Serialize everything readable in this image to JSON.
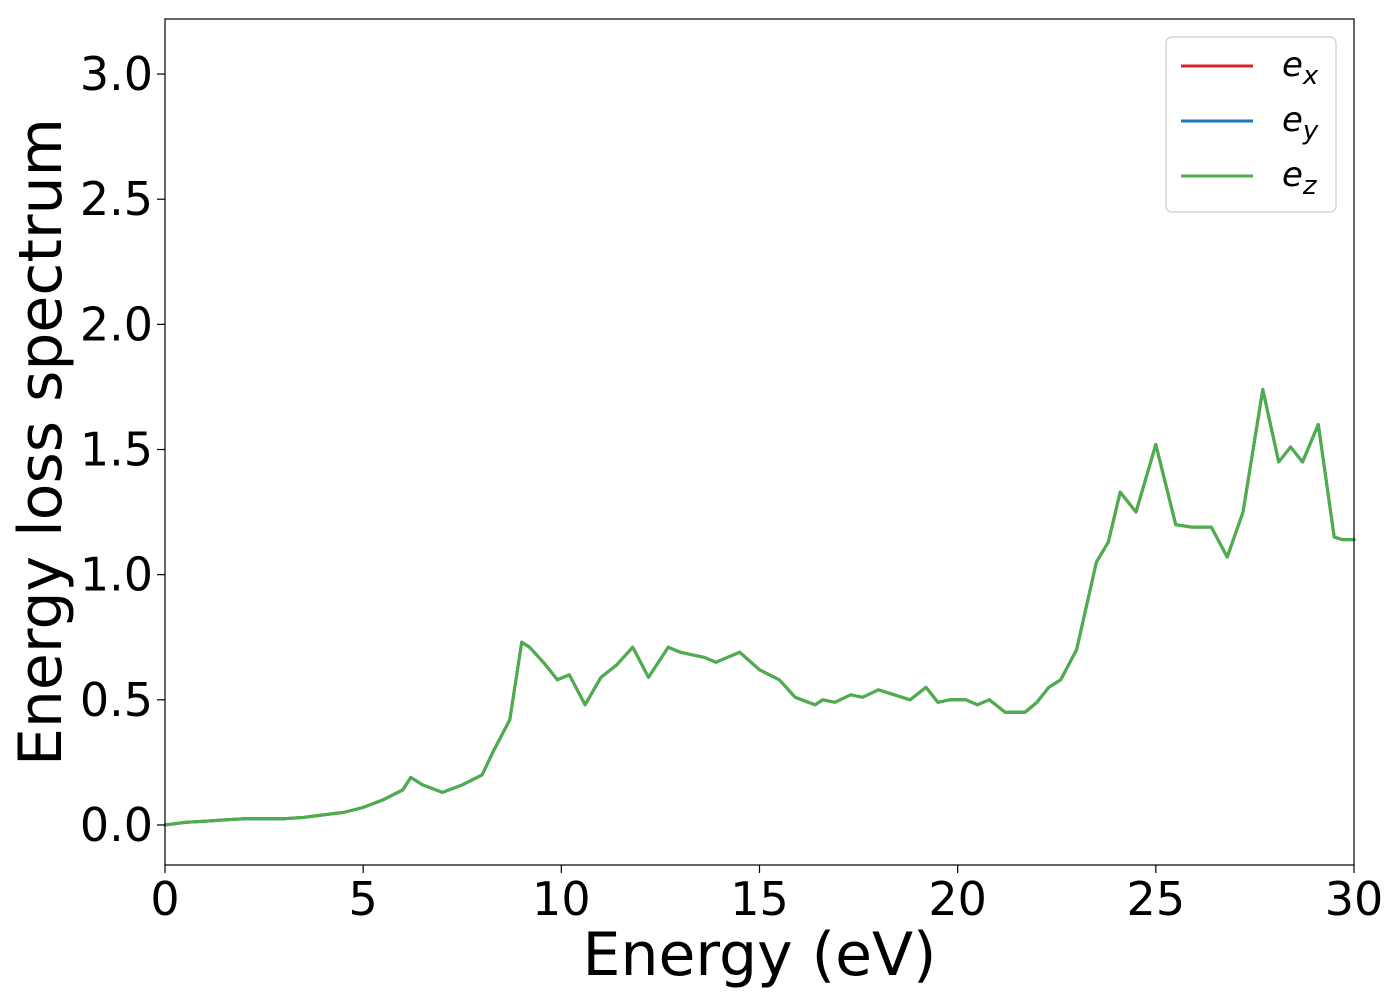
{
  "chart_data": {
    "type": "line",
    "title": "",
    "xlabel": "Energy (eV)",
    "ylabel": "Energy loss spectrum",
    "xlim": [
      0,
      30
    ],
    "ylim": [
      -0.16,
      3.22
    ],
    "xticks": [
      0,
      5,
      10,
      15,
      20,
      25,
      30
    ],
    "xtick_labels": [
      "0",
      "5",
      "10",
      "15",
      "20",
      "25",
      "30"
    ],
    "yticks": [
      0.0,
      0.5,
      1.0,
      1.5,
      2.0,
      2.5,
      3.0
    ],
    "ytick_labels": [
      "0.0",
      "0.5",
      "1.0",
      "1.5",
      "2.0",
      "2.5",
      "3.0"
    ],
    "grid": false,
    "legend_position": "top-right",
    "x": [
      0,
      0.5,
      1,
      1.5,
      2,
      3,
      3.5,
      4,
      4.5,
      5,
      5.5,
      6,
      6.2,
      6.5,
      7,
      7.5,
      8,
      8.3,
      8.7,
      9.0,
      9.2,
      9.6,
      9.9,
      10.2,
      10.6,
      11.0,
      11.4,
      11.8,
      12.2,
      12.7,
      13.0,
      13.3,
      13.6,
      13.9,
      14.2,
      14.5,
      15.0,
      15.5,
      15.9,
      16.4,
      16.6,
      16.9,
      17.3,
      17.6,
      18.0,
      18.4,
      18.8,
      19.2,
      19.5,
      19.8,
      20.2,
      20.5,
      20.8,
      21.2,
      21.7,
      22.0,
      22.3,
      22.6,
      23.0,
      23.5,
      23.8,
      24.1,
      24.5,
      25.0,
      25.5,
      25.9,
      26.4,
      26.8,
      27.2,
      27.7,
      28.1,
      28.4,
      28.7,
      29.1,
      29.5,
      29.7,
      30.0
    ],
    "series": [
      {
        "name": "e_x",
        "color": "#d62728",
        "values": [
          0.0,
          0.01,
          0.015,
          0.02,
          0.025,
          0.025,
          0.03,
          0.04,
          0.05,
          0.07,
          0.1,
          0.14,
          0.19,
          0.16,
          0.13,
          0.16,
          0.2,
          0.3,
          0.42,
          0.73,
          0.71,
          0.64,
          0.58,
          0.6,
          0.48,
          0.59,
          0.64,
          0.71,
          0.59,
          0.71,
          0.69,
          0.68,
          0.67,
          0.65,
          0.67,
          0.69,
          0.62,
          0.58,
          0.51,
          0.48,
          0.5,
          0.49,
          0.52,
          0.51,
          0.54,
          0.52,
          0.5,
          0.55,
          0.49,
          0.5,
          0.5,
          0.48,
          0.5,
          0.45,
          0.45,
          0.49,
          0.55,
          0.58,
          0.7,
          1.05,
          1.13,
          1.33,
          1.25,
          1.52,
          1.2,
          1.19,
          1.19,
          1.07,
          1.25,
          1.74,
          1.45,
          1.51,
          1.45,
          1.6,
          1.15,
          1.14,
          1.14
        ]
      },
      {
        "name": "e_y",
        "color": "#1f77b4",
        "values": [
          0.0,
          0.01,
          0.015,
          0.02,
          0.025,
          0.025,
          0.03,
          0.04,
          0.05,
          0.07,
          0.1,
          0.14,
          0.19,
          0.16,
          0.13,
          0.16,
          0.2,
          0.3,
          0.42,
          0.73,
          0.71,
          0.64,
          0.58,
          0.6,
          0.48,
          0.59,
          0.64,
          0.71,
          0.59,
          0.71,
          0.69,
          0.68,
          0.67,
          0.65,
          0.67,
          0.69,
          0.62,
          0.58,
          0.51,
          0.48,
          0.5,
          0.49,
          0.52,
          0.51,
          0.54,
          0.52,
          0.5,
          0.55,
          0.49,
          0.5,
          0.5,
          0.48,
          0.5,
          0.45,
          0.45,
          0.49,
          0.55,
          0.58,
          0.7,
          1.05,
          1.13,
          1.33,
          1.25,
          1.52,
          1.2,
          1.19,
          1.19,
          1.07,
          1.25,
          1.74,
          1.45,
          1.51,
          1.45,
          1.6,
          1.15,
          1.14,
          1.14
        ]
      },
      {
        "name": "e_z",
        "color": "#4daf4a",
        "values": [
          0.0,
          0.01,
          0.015,
          0.02,
          0.025,
          0.025,
          0.03,
          0.04,
          0.05,
          0.07,
          0.1,
          0.14,
          0.19,
          0.16,
          0.13,
          0.16,
          0.2,
          0.3,
          0.42,
          0.73,
          0.71,
          0.64,
          0.58,
          0.6,
          0.48,
          0.59,
          0.64,
          0.71,
          0.59,
          0.71,
          0.69,
          0.68,
          0.67,
          0.65,
          0.67,
          0.69,
          0.62,
          0.58,
          0.51,
          0.48,
          0.5,
          0.49,
          0.52,
          0.51,
          0.54,
          0.52,
          0.5,
          0.55,
          0.49,
          0.5,
          0.5,
          0.48,
          0.5,
          0.45,
          0.45,
          0.49,
          0.55,
          0.58,
          0.7,
          1.05,
          1.13,
          1.33,
          1.25,
          1.52,
          1.2,
          1.19,
          1.19,
          1.07,
          1.25,
          1.74,
          1.45,
          1.51,
          1.45,
          1.6,
          1.15,
          1.14,
          1.14
        ]
      }
    ],
    "legend": [
      {
        "base": "e",
        "sub": "x"
      },
      {
        "base": "e",
        "sub": "y"
      },
      {
        "base": "e",
        "sub": "z"
      }
    ]
  }
}
